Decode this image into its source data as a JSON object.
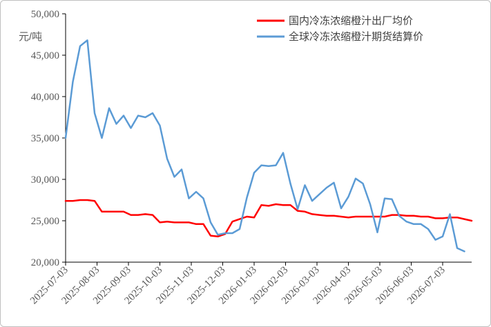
{
  "chart_data": {
    "type": "line",
    "unit_label": "元/吨",
    "ylim": [
      20000,
      50000
    ],
    "y_ticks": [
      "20,000",
      "25,000",
      "30,000",
      "35,000",
      "40,000",
      "45,000",
      "50,000"
    ],
    "y_tick_values": [
      20000,
      25000,
      30000,
      35000,
      40000,
      45000,
      50000
    ],
    "x_ticks": [
      "2025-07-03",
      "2025-08-03",
      "2025-09-03",
      "2025-10-03",
      "2025-11-03",
      "2025-12-03",
      "2026-01-03",
      "2026-02-03",
      "2026-03-03",
      "2026-04-03",
      "2026-05-03",
      "2026-06-03",
      "2026-07-03"
    ],
    "legend_position": "top-right",
    "grid": false,
    "series": [
      {
        "name": "国内冷冻浓缩橙汁出厂均价",
        "color": "#ff0000",
        "values": [
          27400,
          27400,
          27500,
          27500,
          27400,
          26100,
          26100,
          26100,
          26100,
          25700,
          25700,
          25800,
          25700,
          24800,
          24900,
          24800,
          24800,
          24800,
          24600,
          24600,
          23200,
          23100,
          23400,
          24900,
          25200,
          25500,
          25400,
          26900,
          26800,
          27000,
          26900,
          26900,
          26200,
          26100,
          25800,
          25700,
          25600,
          25600,
          25500,
          25400,
          25500,
          25500,
          25500,
          25500,
          25500,
          25700,
          25700,
          25600,
          25600,
          25500,
          25500,
          25300,
          25300,
          25400,
          25400,
          25200,
          25000
        ]
      },
      {
        "name": "全球冷冻浓缩橙汁期货结算价",
        "color": "#5b9bd5",
        "values": [
          35000,
          41800,
          46100,
          46800,
          38000,
          35000,
          38600,
          36700,
          37700,
          36200,
          37700,
          37500,
          38000,
          36500,
          32500,
          30300,
          31200,
          27700,
          28500,
          27700,
          24800,
          23300,
          23500,
          23500,
          24000,
          27800,
          30800,
          31700,
          31600,
          31700,
          33200,
          29500,
          26400,
          29300,
          27400,
          28200,
          29000,
          29600,
          26500,
          27900,
          30100,
          29500,
          27000,
          23600,
          27700,
          27600,
          25600,
          24900,
          24600,
          24600,
          24000,
          22700,
          23100,
          25800,
          21700,
          21300
        ]
      }
    ]
  }
}
